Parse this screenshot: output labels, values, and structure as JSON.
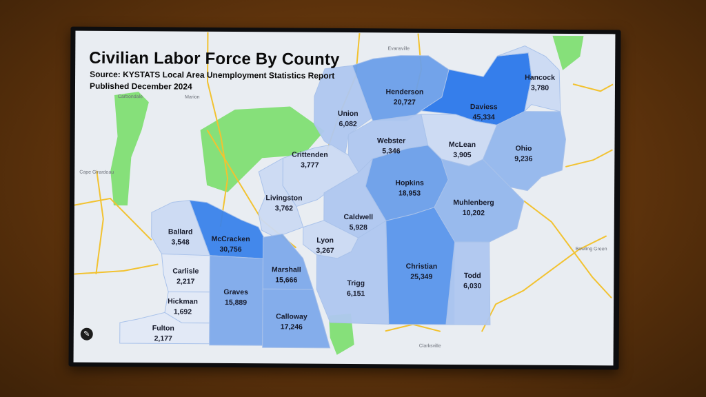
{
  "header": {
    "title": "Civilian Labor Force By County",
    "source": "Source: KYSTATS Local Area Unemployment Statistics Report",
    "published": "Published December 2024"
  },
  "places": [
    "Evansville",
    "Carbondale",
    "Marion",
    "Cape Girardeau",
    "Bowling Green",
    "Clarksville"
  ],
  "counties": [
    {
      "name": "Union",
      "value": "6,082"
    },
    {
      "name": "Henderson",
      "value": "20,727"
    },
    {
      "name": "Daviess",
      "value": "45,334"
    },
    {
      "name": "Hancock",
      "value": "3,780"
    },
    {
      "name": "McLean",
      "value": "3,905"
    },
    {
      "name": "Ohio",
      "value": "9,236"
    },
    {
      "name": "Webster",
      "value": "5,346"
    },
    {
      "name": "Crittenden",
      "value": "3,777"
    },
    {
      "name": "Livingston",
      "value": "3,762"
    },
    {
      "name": "Hopkins",
      "value": "18,953"
    },
    {
      "name": "Muhlenberg",
      "value": "10,202"
    },
    {
      "name": "Caldwell",
      "value": "5,928"
    },
    {
      "name": "Lyon",
      "value": "3,267"
    },
    {
      "name": "Trigg",
      "value": "6,151"
    },
    {
      "name": "Christian",
      "value": "25,349"
    },
    {
      "name": "Todd",
      "value": "6,030"
    },
    {
      "name": "Ballard",
      "value": "3,548"
    },
    {
      "name": "McCracken",
      "value": "30,756"
    },
    {
      "name": "Carlisle",
      "value": "2,217"
    },
    {
      "name": "Hickman",
      "value": "1,692"
    },
    {
      "name": "Fulton",
      "value": "2,177"
    },
    {
      "name": "Graves",
      "value": "15,889"
    },
    {
      "name": "Marshall",
      "value": "15,666"
    },
    {
      "name": "Calloway",
      "value": "17,246"
    }
  ],
  "colors": {
    "road": "#f2c230",
    "park": "#86e07a",
    "land": "#e9edf2",
    "label": "#15192a"
  },
  "icons": {
    "edit": "pencil-icon"
  }
}
